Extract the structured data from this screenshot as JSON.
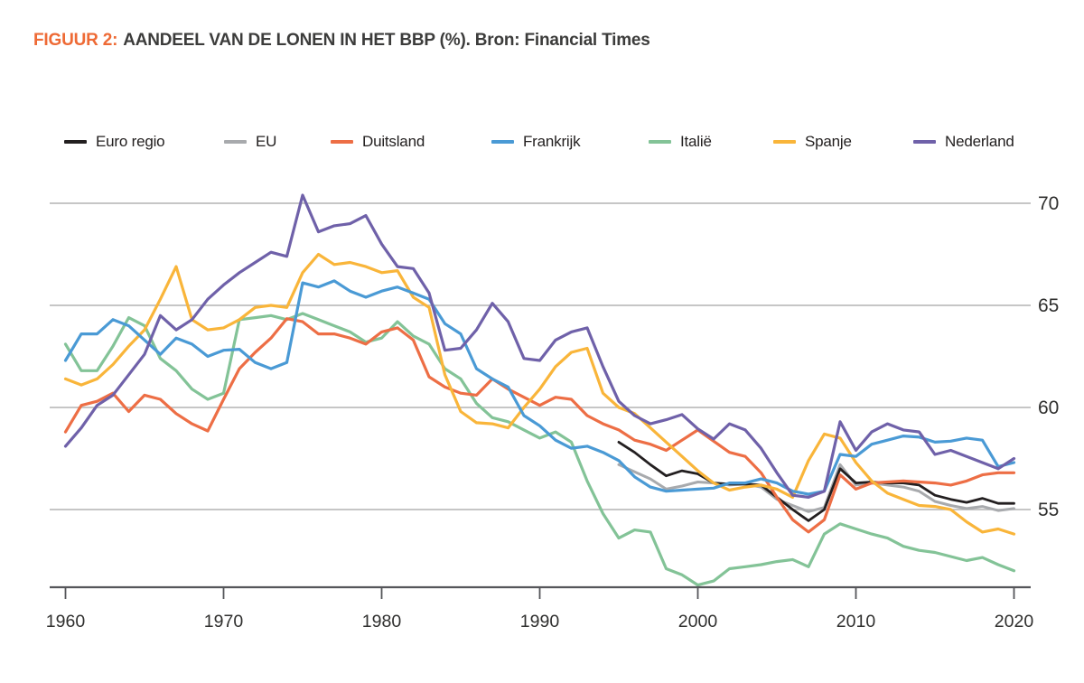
{
  "header": {
    "label": "FIGUUR 2:",
    "title": "AANDEEL VAN DE LONEN IN HET BBP (%). Bron: Financial Times"
  },
  "colors": {
    "accent_title": "#ee6a35",
    "gridline": "#b3b4b4",
    "axis": "#55565a",
    "text": "#2f2f2e"
  },
  "chart_data": {
    "type": "line",
    "title": "AANDEEL VAN DE LONEN IN HET BBP (%)",
    "source": "Bron: Financial Times",
    "legend_position": "top",
    "grid": "horizontal",
    "x_axis": {
      "range": [
        1960,
        2020
      ],
      "ticks": [
        1960,
        1970,
        1980,
        1990,
        2000,
        2010,
        2020
      ],
      "tick_labels": [
        "1960",
        "1970",
        "1980",
        "1990",
        "2000",
        "2010",
        "2020"
      ]
    },
    "y_axis": {
      "range": [
        51,
        70.8
      ],
      "position": "right",
      "ticks": [
        70,
        65,
        60,
        55
      ],
      "tick_labels": [
        "70",
        "65",
        "60",
        "55"
      ]
    },
    "draw_order": [
      1,
      0,
      4,
      2,
      5,
      3,
      6
    ],
    "series": [
      {
        "name": "Euro regio",
        "color": "#231f20",
        "stroke_width": 2.8,
        "start_year": 1995,
        "values": [
          58.3,
          57.8,
          57.2,
          56.65,
          56.9,
          56.75,
          56.3,
          56.25,
          56.25,
          56.2,
          55.6,
          55.0,
          54.45,
          55.0,
          57.0,
          56.3,
          56.35,
          56.3,
          56.3,
          56.2,
          55.7,
          55.5,
          55.35,
          55.55,
          55.3,
          55.3
        ]
      },
      {
        "name": "EU",
        "color": "#a8aaad",
        "stroke_width": 3.0,
        "start_year": 1995,
        "values": [
          57.2,
          56.85,
          56.5,
          56.0,
          56.15,
          56.35,
          56.3,
          56.2,
          56.25,
          56.1,
          55.5,
          55.2,
          54.9,
          55.1,
          57.2,
          56.2,
          56.3,
          56.2,
          56.1,
          55.9,
          55.4,
          55.2,
          55.05,
          55.15,
          54.95,
          55.05
        ]
      },
      {
        "name": "Duitsland",
        "color": "#ed6e45",
        "stroke_width": 3.2,
        "start_year": 1960,
        "values": [
          58.8,
          60.1,
          60.3,
          60.7,
          59.8,
          60.6,
          60.4,
          59.7,
          59.2,
          58.85,
          60.4,
          61.9,
          62.7,
          63.4,
          64.35,
          64.2,
          63.6,
          63.6,
          63.4,
          63.1,
          63.7,
          63.9,
          63.3,
          61.5,
          61.0,
          60.7,
          60.6,
          61.4,
          60.9,
          60.5,
          60.1,
          60.5,
          60.4,
          59.6,
          59.2,
          58.9,
          58.4,
          58.2,
          57.9,
          58.4,
          58.9,
          58.35,
          57.8,
          57.6,
          56.8,
          55.6,
          54.5,
          53.9,
          54.5,
          56.7,
          56.0,
          56.3,
          56.35,
          56.4,
          56.35,
          56.3,
          56.2,
          56.4,
          56.7,
          56.8,
          56.8
        ]
      },
      {
        "name": "Frankrijk",
        "color": "#4a9ad5",
        "stroke_width": 3.2,
        "start_year": 1960,
        "values": [
          62.3,
          63.6,
          63.6,
          64.3,
          64.0,
          63.3,
          62.6,
          63.4,
          63.1,
          62.5,
          62.8,
          62.85,
          62.2,
          61.9,
          62.2,
          66.1,
          65.9,
          66.2,
          65.7,
          65.4,
          65.7,
          65.9,
          65.6,
          65.3,
          64.1,
          63.6,
          61.9,
          61.4,
          61.0,
          59.6,
          59.1,
          58.4,
          58.0,
          58.1,
          57.8,
          57.4,
          56.6,
          56.1,
          55.9,
          55.95,
          56.0,
          56.05,
          56.3,
          56.3,
          56.5,
          56.3,
          55.9,
          55.75,
          55.9,
          57.7,
          57.6,
          58.2,
          58.4,
          58.6,
          58.55,
          58.3,
          58.35,
          58.5,
          58.4,
          57.1,
          57.3
        ]
      },
      {
        "name": "Italië",
        "color": "#83c397",
        "stroke_width": 3.2,
        "start_year": 1960,
        "values": [
          63.1,
          61.8,
          61.8,
          63.0,
          64.4,
          64.0,
          62.4,
          61.8,
          60.9,
          60.4,
          60.7,
          64.3,
          64.4,
          64.5,
          64.3,
          64.6,
          64.3,
          64.0,
          63.7,
          63.2,
          63.4,
          64.2,
          63.5,
          63.1,
          61.9,
          61.4,
          60.2,
          59.5,
          59.3,
          58.9,
          58.5,
          58.8,
          58.3,
          56.4,
          54.8,
          53.6,
          54.0,
          53.9,
          52.1,
          51.8,
          51.3,
          51.5,
          52.1,
          52.2,
          52.3,
          52.45,
          52.55,
          52.2,
          53.8,
          54.3,
          54.05,
          53.8,
          53.6,
          53.2,
          53.0,
          52.9,
          52.7,
          52.5,
          52.65,
          52.3,
          52.0
        ]
      },
      {
        "name": "Spanje",
        "color": "#f9b53a",
        "stroke_width": 3.2,
        "start_year": 1960,
        "values": [
          61.4,
          61.1,
          61.4,
          62.1,
          63.0,
          63.8,
          65.3,
          66.9,
          64.3,
          63.8,
          63.9,
          64.3,
          64.9,
          65.0,
          64.9,
          66.6,
          67.5,
          67.0,
          67.1,
          66.9,
          66.6,
          66.7,
          65.4,
          64.9,
          61.6,
          59.8,
          59.25,
          59.2,
          59.0,
          60.0,
          60.9,
          62.0,
          62.7,
          62.9,
          60.7,
          60.0,
          59.7,
          59.0,
          58.3,
          57.6,
          56.9,
          56.3,
          55.95,
          56.1,
          56.2,
          56.0,
          55.6,
          57.4,
          58.7,
          58.5,
          57.3,
          56.4,
          55.8,
          55.5,
          55.2,
          55.15,
          55.0,
          54.4,
          53.9,
          54.05,
          53.8
        ]
      },
      {
        "name": "Nederland",
        "color": "#6f61a9",
        "stroke_width": 3.2,
        "start_year": 1960,
        "values": [
          58.1,
          59.0,
          60.1,
          60.6,
          61.6,
          62.6,
          64.5,
          63.8,
          64.3,
          65.3,
          66.0,
          66.6,
          67.1,
          67.6,
          67.4,
          70.4,
          68.6,
          68.9,
          69.0,
          69.4,
          68.0,
          66.9,
          66.8,
          65.6,
          62.8,
          62.9,
          63.8,
          65.1,
          64.2,
          62.4,
          62.3,
          63.3,
          63.7,
          63.9,
          62.0,
          60.3,
          59.6,
          59.2,
          59.4,
          59.65,
          58.95,
          58.45,
          59.2,
          58.9,
          58.0,
          56.8,
          55.7,
          55.6,
          55.9,
          59.3,
          57.9,
          58.8,
          59.2,
          58.9,
          58.8,
          57.7,
          57.9,
          57.6,
          57.3,
          57.0,
          57.5
        ]
      }
    ]
  }
}
